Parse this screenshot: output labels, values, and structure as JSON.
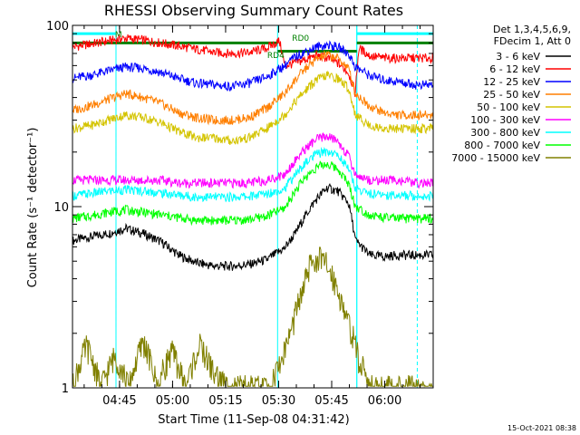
{
  "chart_data": {
    "type": "line",
    "title": "RHESSI Observing Summary Count Rates",
    "xlabel": "Start Time (11-Sep-08 04:31:42)",
    "ylabel": "Count Rate (s⁻¹ detector⁻¹)",
    "x_unit": "minutes since 04:31:42",
    "xlim": [
      0,
      102
    ],
    "ylim": [
      1,
      100
    ],
    "yscale": "log",
    "x_ticks": [
      {
        "x": 13.3,
        "label": "04:45"
      },
      {
        "x": 28.3,
        "label": "05:00"
      },
      {
        "x": 43.3,
        "label": "05:15"
      },
      {
        "x": 58.3,
        "label": "05:30"
      },
      {
        "x": 73.3,
        "label": "05:45"
      },
      {
        "x": 88.3,
        "label": "06:00"
      }
    ],
    "y_ticks": [
      {
        "y": 1,
        "label": "1"
      },
      {
        "y": 10,
        "label": "10"
      },
      {
        "y": 100,
        "label": "100"
      }
    ],
    "legend_header": [
      "Det 1,3,4,5,6,9,",
      "FDecim 1, Att 0"
    ],
    "legend_position": "right",
    "series": [
      {
        "name": "3 - 6 keV",
        "color": "#000000",
        "x": [
          0,
          5,
          10,
          15,
          20,
          25,
          30,
          35,
          40,
          45,
          50,
          55,
          60,
          63,
          66,
          69,
          72,
          75,
          78,
          80,
          84,
          88,
          92,
          97,
          100
        ],
        "y": [
          6.5,
          6.8,
          7.1,
          7.6,
          7.1,
          6.4,
          5.4,
          4.9,
          4.7,
          4.7,
          4.8,
          5.1,
          5.9,
          7.1,
          9.0,
          11.0,
          12.7,
          12.2,
          10.5,
          6.5,
          5.4,
          5.3,
          5.4,
          5.4,
          5.4
        ]
      },
      {
        "name": "6 - 12 keV",
        "color": "#ff0000",
        "x": [
          0,
          5,
          10,
          15,
          20,
          25,
          30,
          35,
          40,
          45,
          50,
          55,
          58.5,
          60,
          63,
          66,
          69,
          72,
          75,
          78,
          80,
          81,
          84,
          88,
          92,
          97,
          100
        ],
        "y": [
          76,
          79,
          82,
          85,
          83,
          80,
          77,
          74,
          71,
          70,
          71,
          75,
          82,
          60,
          62,
          65,
          68,
          66,
          62,
          55,
          42,
          75,
          68,
          66,
          66,
          66,
          66
        ]
      },
      {
        "name": "12 - 25 keV",
        "color": "#0000ff",
        "x": [
          0,
          5,
          10,
          15,
          20,
          25,
          30,
          35,
          40,
          45,
          50,
          55,
          60,
          63,
          66,
          69,
          72,
          75,
          78,
          80,
          84,
          88,
          92,
          97,
          100
        ],
        "y": [
          51,
          53,
          56,
          59,
          58,
          55,
          51,
          48,
          47,
          46,
          48,
          52,
          60,
          67,
          72,
          76,
          78,
          76,
          70,
          59,
          53,
          50,
          49,
          47,
          47
        ]
      },
      {
        "name": "25 - 50 keV",
        "color": "#ff7f00",
        "x": [
          0,
          5,
          10,
          15,
          20,
          25,
          30,
          35,
          40,
          45,
          50,
          55,
          60,
          63,
          66,
          69,
          72,
          75,
          78,
          80,
          84,
          88,
          92,
          97,
          100
        ],
        "y": [
          34,
          36,
          39,
          42,
          40,
          37,
          33,
          31,
          30,
          30,
          31,
          35,
          42,
          50,
          58,
          65,
          69,
          66,
          58,
          42,
          36,
          33,
          32,
          32,
          32
        ]
      },
      {
        "name": "50 - 100 keV",
        "color": "#d4c400",
        "x": [
          0,
          5,
          10,
          15,
          20,
          25,
          30,
          35,
          40,
          45,
          50,
          55,
          60,
          63,
          66,
          69,
          72,
          75,
          78,
          80,
          84,
          88,
          92,
          97,
          100
        ],
        "y": [
          27,
          28,
          30,
          32,
          31,
          29,
          26,
          24,
          24,
          23,
          24,
          27,
          32,
          38,
          44,
          50,
          53,
          51,
          45,
          32,
          28,
          27,
          27,
          27,
          27
        ]
      },
      {
        "name": "100 - 300 keV",
        "color": "#ff00ff",
        "x": [
          0,
          5,
          10,
          15,
          20,
          25,
          30,
          35,
          40,
          45,
          50,
          55,
          60,
          63,
          66,
          69,
          72,
          75,
          78,
          80,
          84,
          88,
          92,
          97,
          100
        ],
        "y": [
          14,
          14,
          14,
          14,
          14,
          14,
          13.5,
          13.5,
          13.5,
          13.5,
          13.5,
          14,
          15,
          18,
          21,
          23.5,
          24.5,
          23,
          19,
          15,
          14,
          14,
          14,
          13.5,
          13.5
        ]
      },
      {
        "name": "300 - 800 keV",
        "color": "#00ffff",
        "x": [
          0,
          5,
          10,
          15,
          20,
          25,
          30,
          35,
          40,
          45,
          50,
          55,
          60,
          63,
          66,
          69,
          72,
          75,
          78,
          80,
          84,
          88,
          92,
          97,
          100
        ],
        "y": [
          11.5,
          11.8,
          12.2,
          12.4,
          12.2,
          11.9,
          11.6,
          11.3,
          11.3,
          11.3,
          11.4,
          11.8,
          12.6,
          15,
          17.5,
          19.5,
          20.2,
          19.3,
          16.3,
          12.6,
          11.8,
          11.6,
          11.6,
          11.5,
          11.5
        ]
      },
      {
        "name": "800 - 7000 keV",
        "color": "#00ff00",
        "x": [
          0,
          5,
          10,
          15,
          20,
          25,
          30,
          35,
          40,
          45,
          50,
          55,
          60,
          63,
          66,
          69,
          72,
          75,
          78,
          80,
          84,
          88,
          92,
          97,
          100
        ],
        "y": [
          8.6,
          8.9,
          9.3,
          9.6,
          9.3,
          9.0,
          8.7,
          8.4,
          8.4,
          8.4,
          8.5,
          8.9,
          9.8,
          12.2,
          14.6,
          16.5,
          17.2,
          16.2,
          13.4,
          10.0,
          9.0,
          8.7,
          8.6,
          8.6,
          8.6
        ]
      },
      {
        "name": "7000 - 15000 keV",
        "color": "#808000",
        "x": [
          0,
          4,
          8,
          12,
          16,
          20,
          24,
          28,
          32,
          36,
          40,
          44,
          48,
          52,
          56,
          59,
          62,
          65,
          67,
          69,
          71,
          73,
          75,
          77,
          79,
          81,
          85,
          90,
          95,
          100
        ],
        "y": [
          1,
          1.7,
          1,
          1.5,
          1,
          1.8,
          1,
          1.6,
          1,
          1.7,
          1.2,
          1,
          1,
          1,
          1,
          1.4,
          2.1,
          3.4,
          4.6,
          5.2,
          5.0,
          4.4,
          3.5,
          2.6,
          2.0,
          1.4,
          1,
          1,
          1,
          1
        ]
      }
    ],
    "attenuator_shading": {
      "color": "#00ffff",
      "intervals": [
        [
          0,
          12.3
        ],
        [
          80.4,
          102
        ]
      ],
      "level": 90
    },
    "flag_labels": [
      {
        "label": "RD4",
        "x": 57.5,
        "y": 66
      },
      {
        "label": "RD0",
        "x": 64.5,
        "y": 82
      },
      {
        "label": "M",
        "x": 13.0,
        "y": 86
      }
    ],
    "flag_bars": {
      "color": "#008000",
      "bars": [
        {
          "x0": 0,
          "x1": 58,
          "y": 80
        },
        {
          "x0": 58,
          "x1": 80.4,
          "y": 72
        },
        {
          "x0": 80.4,
          "x1": 102,
          "y": 80
        }
      ]
    },
    "vertical_lines": [
      {
        "x": 12.3,
        "style": "dashed"
      },
      {
        "x": 58.0,
        "style": "solid"
      },
      {
        "x": 80.4,
        "style": "solid"
      },
      {
        "x": 97.5,
        "style": "dashed"
      }
    ],
    "timestamp": "15-Oct-2021 08:38"
  }
}
